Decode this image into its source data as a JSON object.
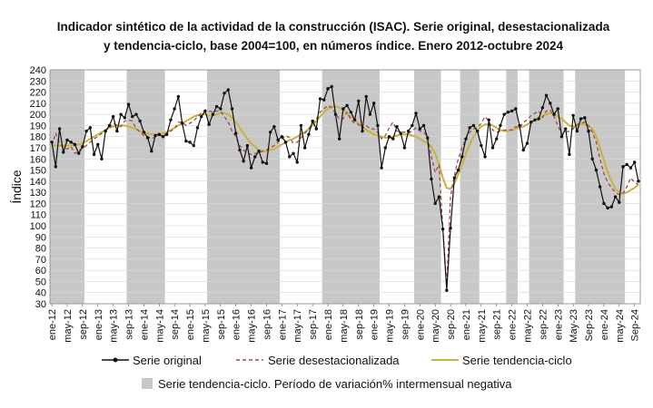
{
  "chart_data": {
    "type": "line",
    "title_line1": "Indicador sintético de la actividad de la construcción (ISAC). Serie original, desestacionalizada",
    "title_line2": "y tendencia-ciclo, base 2004=100, en números índice. Enero 2012-octubre 2024",
    "ylabel": "Índice",
    "ylim": [
      30,
      240
    ],
    "ystep": 10,
    "start": "2012-01",
    "months": 154,
    "x_tick_labels": [
      "ene-12",
      "may-12",
      "sep-12",
      "ene-13",
      "may-13",
      "sep-13",
      "ene-14",
      "may-14",
      "sep-14",
      "ene-15",
      "may-15",
      "sep-15",
      "ene-16",
      "may-16",
      "sep-16",
      "ene-17",
      "may-17",
      "sep-17",
      "ene-18",
      "may-18",
      "sep-18",
      "ene-19",
      "may-19",
      "sep-19",
      "ene-20",
      "may-20",
      "sep-20",
      "ene-21",
      "may-21",
      "sep-21",
      "ene-22",
      "may-22",
      "sep-22",
      "ene-23",
      "May-23",
      "Sep-23",
      "ene-24",
      "may-24",
      "Sep-24"
    ],
    "shaded_periods": [
      [
        "2012-01",
        "2012-09"
      ],
      [
        "2013-09",
        "2014-06"
      ],
      [
        "2015-06",
        "2016-12"
      ],
      [
        "2017-12",
        "2019-02"
      ],
      [
        "2019-12",
        "2020-06"
      ],
      [
        "2020-12",
        "2021-04"
      ],
      [
        "2021-12",
        "2022-02"
      ],
      [
        "2022-06",
        "2023-02"
      ],
      [
        "2023-06",
        "2024-06"
      ]
    ],
    "series": [
      {
        "name": "Serie original",
        "color": "#111111",
        "style": "line-markers",
        "values": [
          175,
          153,
          187,
          166,
          177,
          175,
          173,
          165,
          171,
          185,
          188,
          164,
          173,
          160,
          185,
          190,
          198,
          185,
          200,
          197,
          209,
          198,
          200,
          194,
          184,
          179,
          167,
          181,
          182,
          180,
          182,
          195,
          205,
          216,
          192,
          176,
          175,
          172,
          188,
          198,
          203,
          191,
          200,
          207,
          205,
          219,
          222,
          205,
          183,
          168,
          158,
          172,
          152,
          162,
          167,
          157,
          156,
          184,
          189,
          177,
          180,
          175,
          162,
          165,
          157,
          190,
          170,
          182,
          194,
          187,
          214,
          213,
          223,
          225,
          200,
          178,
          205,
          208,
          202,
          195,
          212,
          185,
          216,
          200,
          210,
          190,
          152,
          170,
          180,
          178,
          189,
          183,
          170,
          185,
          190,
          201,
          187,
          190,
          179,
          142,
          120,
          126,
          97,
          42,
          98,
          143,
          150,
          162,
          178,
          188,
          190,
          185,
          172,
          162,
          195,
          170,
          178,
          190,
          200,
          202,
          203,
          205,
          190,
          168,
          174,
          193,
          195,
          196,
          206,
          217,
          210,
          200,
          205,
          180,
          187,
          164,
          199,
          185,
          196,
          197,
          185,
          160,
          150,
          135,
          120,
          116,
          117,
          126,
          121,
          153,
          155,
          152,
          157,
          140
        ]
      },
      {
        "name": "Serie desestacionalizada",
        "color": "#9e4a52",
        "style": "dashed",
        "values": [
          172,
          183,
          174,
          170,
          169,
          171,
          165,
          167,
          170,
          172,
          175,
          178,
          180,
          183,
          186,
          188,
          192,
          190,
          189,
          194,
          195,
          194,
          187,
          184,
          181,
          180,
          178,
          180,
          181,
          181,
          183,
          185,
          187,
          193,
          193,
          190,
          192,
          194,
          198,
          201,
          204,
          203,
          202,
          203,
          203,
          198,
          193,
          185,
          180,
          172,
          168,
          165,
          164,
          165,
          165,
          167,
          168,
          170,
          172,
          175,
          178,
          181,
          179,
          174,
          175,
          179,
          183,
          187,
          192,
          196,
          202,
          205,
          208,
          206,
          201,
          196,
          196,
          202,
          195,
          192,
          191,
          187,
          190,
          187,
          187,
          184,
          178,
          181,
          188,
          193,
          185,
          184,
          184,
          183,
          185,
          188,
          185,
          184,
          180,
          162,
          148,
          155,
          97,
          45,
          126,
          145,
          160,
          170,
          178,
          184,
          187,
          188,
          192,
          198,
          194,
          186,
          184,
          185,
          186,
          186,
          186,
          189,
          188,
          193,
          195,
          199,
          201,
          203,
          197,
          203,
          204,
          198,
          190,
          182,
          184,
          185,
          187,
          191,
          192,
          193,
          190,
          184,
          175,
          160,
          147,
          139,
          134,
          130,
          128,
          129,
          135,
          143,
          139,
          137
        ]
      },
      {
        "name": "Serie tendencia-ciclo",
        "color": "#c9b23a",
        "style": "line",
        "values": [
          172,
          172,
          172,
          172,
          172,
          172,
          172,
          173,
          174,
          176,
          178,
          180,
          182,
          184,
          186,
          188,
          189,
          190,
          190,
          190,
          189,
          188,
          187,
          185,
          184,
          183,
          182,
          182,
          182,
          183,
          184,
          186,
          188,
          190,
          192,
          194,
          196,
          198,
          199,
          200,
          200,
          199,
          199,
          200,
          201,
          201,
          200,
          197,
          193,
          188,
          183,
          178,
          174,
          171,
          168,
          167,
          167,
          168,
          169,
          171,
          173,
          175,
          177,
          178,
          180,
          182,
          184,
          187,
          190,
          194,
          198,
          202,
          205,
          207,
          207,
          206,
          204,
          201,
          198,
          195,
          192,
          189,
          186,
          184,
          182,
          181,
          180,
          179,
          179,
          180,
          181,
          182,
          182,
          182,
          181,
          180,
          178,
          176,
          174,
          171,
          165,
          155,
          143,
          134,
          133,
          138,
          146,
          155,
          165,
          173,
          180,
          185,
          189,
          191,
          191,
          190,
          188,
          186,
          185,
          185,
          186,
          187,
          188,
          189,
          191,
          193,
          195,
          197,
          199,
          200,
          201,
          200,
          198,
          196,
          193,
          190,
          189,
          190,
          191,
          191,
          190,
          187,
          180,
          170,
          159,
          148,
          140,
          133,
          130,
          129,
          130,
          132,
          134,
          137
        ]
      }
    ]
  }
}
